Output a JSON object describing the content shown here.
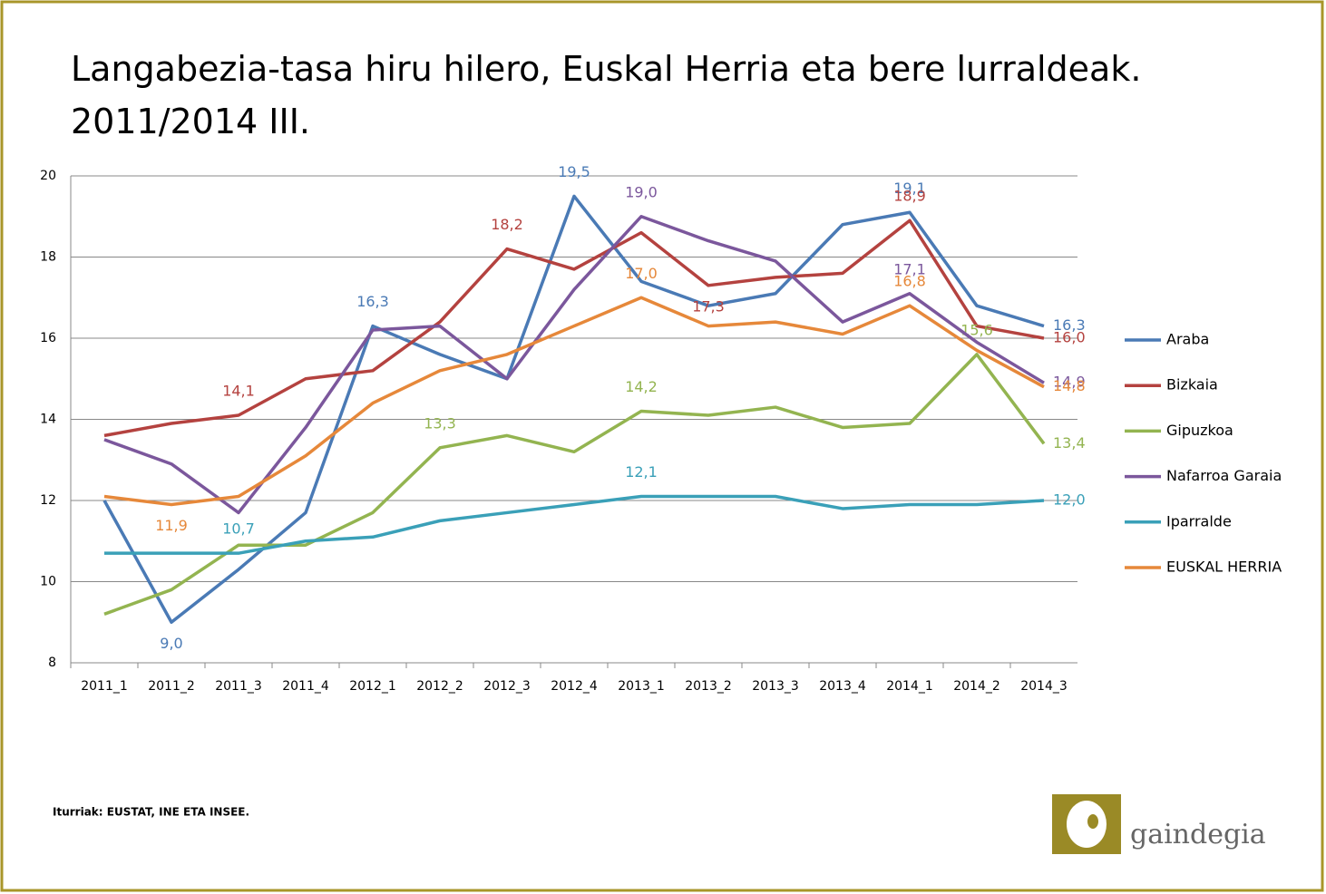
{
  "chart_data": {
    "type": "line",
    "title": "Langabezia-tasa hiru hilero, Euskal Herria eta bere lurraldeak. 2011/2014 III.",
    "source": "Iturriak: EUSTAT, INE ETA INSEE.",
    "logo": "gaindegia",
    "categories": [
      "2011_1",
      "2011_2",
      "2011_3",
      "2011_4",
      "2012_1",
      "2012_2",
      "2012_3",
      "2012_4",
      "2013_1",
      "2013_2",
      "2013_3",
      "2013_4",
      "2014_1",
      "2014_2",
      "2014_3"
    ],
    "ylim": [
      8,
      20
    ],
    "yticks": [
      8,
      10,
      12,
      14,
      16,
      18,
      20
    ],
    "grid": true,
    "legend": "right",
    "series": [
      {
        "name": "Araba",
        "color": "#4a7ab5",
        "values": [
          12.0,
          9.0,
          10.3,
          11.7,
          16.3,
          15.6,
          15.0,
          19.5,
          17.4,
          16.8,
          17.1,
          18.8,
          19.1,
          16.8,
          16.3
        ],
        "value_labels": [
          null,
          "9,0",
          null,
          null,
          "16,3",
          null,
          null,
          "19,5",
          null,
          null,
          null,
          null,
          "19,1",
          null,
          "16,3"
        ]
      },
      {
        "name": "Bizkaia",
        "color": "#b4423f",
        "values": [
          13.6,
          13.9,
          14.1,
          15.0,
          15.2,
          16.4,
          18.2,
          17.7,
          18.6,
          17.3,
          17.5,
          17.6,
          18.9,
          16.3,
          16.0
        ],
        "value_labels": [
          null,
          null,
          "14,1",
          null,
          null,
          null,
          "18,2",
          null,
          null,
          "17,3",
          null,
          null,
          "18,9",
          null,
          "16,0"
        ]
      },
      {
        "name": "Gipuzkoa",
        "color": "#93b450",
        "values": [
          9.2,
          9.8,
          10.9,
          10.9,
          11.7,
          13.3,
          13.6,
          13.2,
          14.2,
          14.1,
          14.3,
          13.8,
          13.9,
          15.6,
          13.4
        ],
        "value_labels": [
          null,
          null,
          null,
          null,
          null,
          "13,3",
          null,
          null,
          "14,2",
          null,
          null,
          null,
          null,
          "15,6",
          "13,4"
        ]
      },
      {
        "name": "Nafarroa Garaia",
        "color": "#7b579c",
        "values": [
          13.5,
          12.9,
          11.7,
          13.8,
          16.2,
          16.3,
          15.0,
          17.2,
          19.0,
          18.4,
          17.9,
          16.4,
          17.1,
          15.9,
          14.9
        ],
        "value_labels": [
          null,
          null,
          null,
          null,
          null,
          null,
          null,
          null,
          "19,0",
          null,
          null,
          null,
          "17,1",
          null,
          "14,9"
        ]
      },
      {
        "name": "Iparralde",
        "color": "#3aa0b8",
        "values": [
          10.7,
          10.7,
          10.7,
          11.0,
          11.1,
          11.5,
          11.7,
          11.9,
          12.1,
          12.1,
          12.1,
          11.8,
          11.9,
          11.9,
          12.0
        ],
        "value_labels": [
          null,
          null,
          "10,7",
          null,
          null,
          null,
          null,
          null,
          "12,1",
          null,
          null,
          null,
          null,
          null,
          "12,0"
        ]
      },
      {
        "name": "EUSKAL HERRIA",
        "color": "#e6883a",
        "values": [
          12.1,
          11.9,
          12.1,
          13.1,
          14.4,
          15.2,
          15.6,
          16.3,
          17.0,
          16.3,
          16.4,
          16.1,
          16.8,
          15.7,
          14.8
        ],
        "value_labels": [
          null,
          "11,9",
          null,
          null,
          null,
          null,
          null,
          null,
          "17,0",
          null,
          null,
          null,
          "16,8",
          null,
          "14,8"
        ]
      }
    ]
  }
}
